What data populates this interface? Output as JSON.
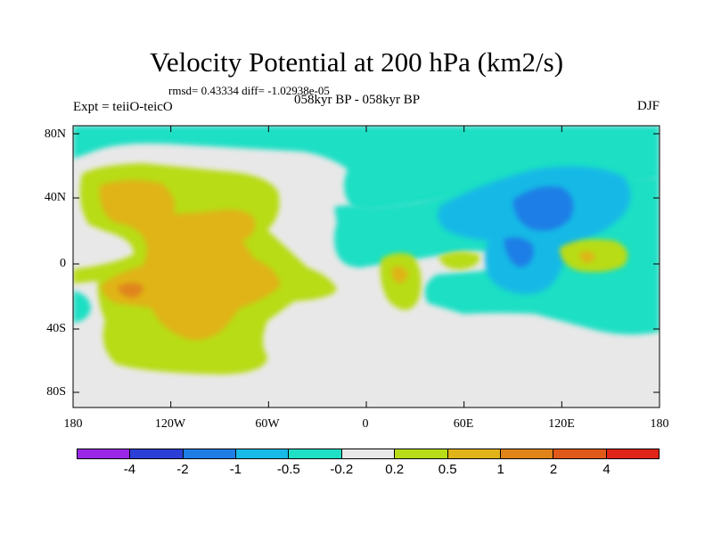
{
  "title": "Velocity Potential at 200 hPa (km2/s)",
  "stats": "rmsd= 0.43334 diff= -1.02938e-05",
  "expt": "Expt = teiiO-teicO",
  "period": "058kyr BP - 058kyr BP",
  "season": "DJF",
  "latitude_labels": [
    "80N",
    "40N",
    "0",
    "40S",
    "80S"
  ],
  "longitude_labels": [
    "180",
    "120W",
    "60W",
    "0",
    "60E",
    "120E",
    "180"
  ],
  "colorbar": {
    "labels": [
      "-4",
      "-2",
      "-1",
      "-0.5",
      "-0.2",
      "0.2",
      "0.5",
      "1",
      "2",
      "4"
    ],
    "colors": [
      "#9a28e6",
      "#2b3fd6",
      "#1f7ee6",
      "#17b9e6",
      "#1fdfc4",
      "#e8e8e8",
      "#b8dc18",
      "#e0b418",
      "#e0841a",
      "#e0581a",
      "#e0241a"
    ]
  }
}
